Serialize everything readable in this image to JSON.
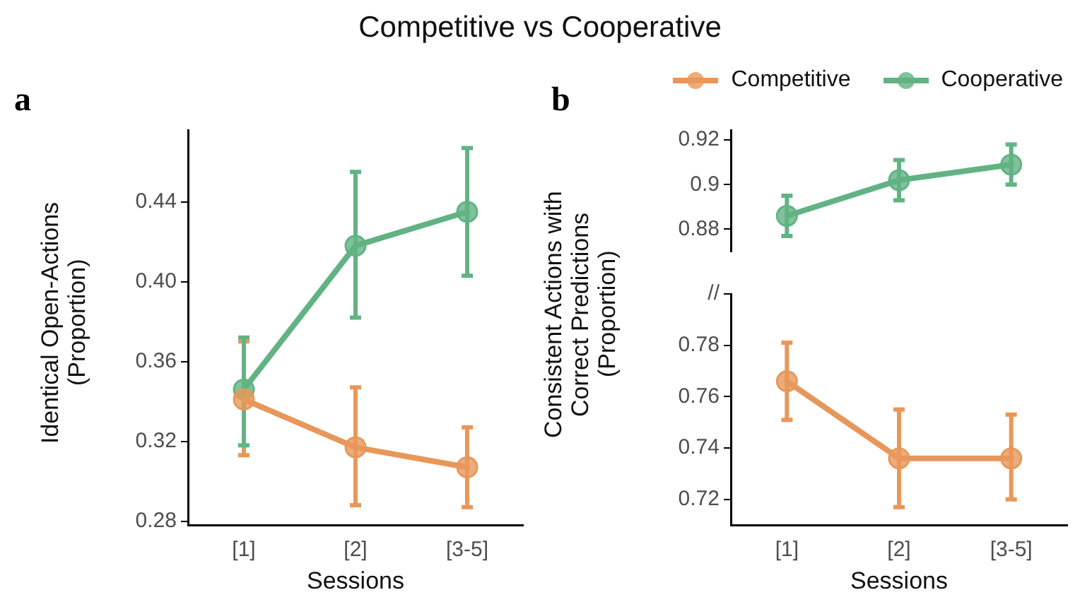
{
  "chart_data": [
    {
      "type": "line",
      "title": "Competitive vs Cooperative",
      "annotations": [
        "a"
      ],
      "xlabel": "Sessions",
      "ylabel": "Identical Open-Actions (Proportion)",
      "categories": [
        "[1]",
        "[2]",
        "[3-5]"
      ],
      "series": [
        {
          "name": "Competitive",
          "color": "#e8975a",
          "values": [
            0.341,
            0.317,
            0.307
          ],
          "errors": [
            [
              0.313,
              0.37
            ],
            [
              0.288,
              0.347
            ],
            [
              0.287,
              0.327
            ]
          ]
        },
        {
          "name": "Cooperative",
          "color": "#62b383",
          "values": [
            0.346,
            0.418,
            0.435
          ],
          "errors": [
            [
              0.318,
              0.372
            ],
            [
              0.382,
              0.455
            ],
            [
              0.403,
              0.467
            ]
          ]
        }
      ],
      "ylim": [
        0.278,
        0.476
      ],
      "yticks": [
        0.28,
        0.32,
        0.36,
        {
          "value": 0.4,
          "label": "0.40"
        },
        0.44
      ],
      "grid": false,
      "legend": "top right",
      "marker": "circle"
    },
    {
      "type": "line",
      "annotations": [
        "b"
      ],
      "categories": [
        null,
        null,
        null
      ],
      "series": [
        {
          "color": "#62b383",
          "values": [
            0.886,
            0.902,
            0.909
          ],
          "errors": [
            [
              0.877,
              0.895
            ],
            [
              0.893,
              0.911
            ],
            [
              0.9,
              0.918
            ]
          ]
        }
      ],
      "ylim": [
        0.87,
        0.9245
      ],
      "yticks": [
        0.88,
        0.9,
        0.92
      ],
      "grid": false,
      "marker": "circle",
      "tick_labels": "y"
    },
    {
      "type": "line",
      "xlabel": "Sessions",
      "ylabel": "Consistent Actions with Correct Predictions (Proportion)",
      "categories": [
        "[1]",
        "[2]",
        "[3-5]"
      ],
      "series": [
        {
          "color": "#e8975a",
          "values": [
            0.766,
            0.736,
            0.736
          ],
          "errors": [
            [
              0.751,
              0.781
            ],
            [
              0.717,
              0.755
            ],
            [
              0.72,
              0.753
            ]
          ]
        }
      ],
      "ylim": [
        0.71,
        0.8
      ],
      "yticks": [
        0.72,
        0.74,
        0.76,
        0.78,
        {
          "value": 0.8,
          "label": "//"
        }
      ],
      "grid": false,
      "marker": "circle"
    }
  ]
}
